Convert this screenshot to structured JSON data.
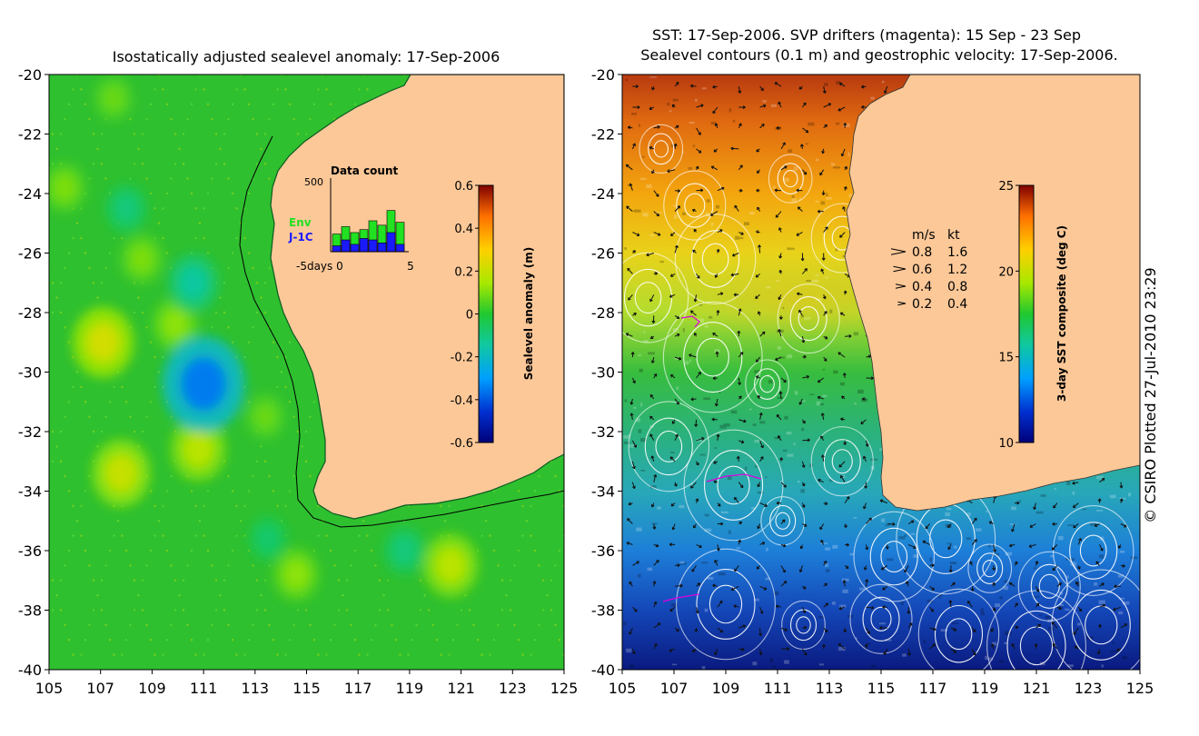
{
  "copyright": "© CSIRO Plotted 27-Jul-2010 23:29",
  "chart_data": [
    {
      "type": "heatmap",
      "title": "Isostatically adjusted sealevel anomaly: 17-Sep-2006",
      "xlim": [
        105,
        125
      ],
      "ylim": [
        -40,
        -20
      ],
      "xticks": [
        "105",
        "107",
        "109",
        "111",
        "113",
        "115",
        "117",
        "119",
        "121",
        "123",
        "125"
      ],
      "yticks": [
        "-20",
        "-22",
        "-24",
        "-26",
        "-28",
        "-30",
        "-32",
        "-34",
        "-36",
        "-38",
        "-40"
      ],
      "colorbar": {
        "label": "Sealevel anomaly (m)",
        "range": [
          -0.6,
          0.6
        ],
        "ticks": [
          "0.6",
          "0.4",
          "0.2",
          "0",
          "-0.2",
          "-0.4",
          "-0.6"
        ]
      },
      "anomaly_features": [
        {
          "lon": 107.1,
          "lat": -29.0,
          "value": 0.22
        },
        {
          "lon": 107.8,
          "lat": -33.4,
          "value": 0.2
        },
        {
          "lon": 110.8,
          "lat": -32.6,
          "value": 0.18
        },
        {
          "lon": 120.6,
          "lat": -36.5,
          "value": 0.18
        },
        {
          "lon": 109.9,
          "lat": -28.4,
          "value": 0.12
        },
        {
          "lon": 114.6,
          "lat": -36.8,
          "value": 0.12
        },
        {
          "lon": 105.6,
          "lat": -23.8,
          "value": 0.1
        },
        {
          "lon": 108.6,
          "lat": -26.2,
          "value": 0.1
        },
        {
          "lon": 113.4,
          "lat": -31.5,
          "value": 0.08
        },
        {
          "lon": 107.5,
          "lat": -20.8,
          "value": 0.08
        },
        {
          "lon": 111.0,
          "lat": -30.4,
          "value": -0.35
        },
        {
          "lon": 110.6,
          "lat": -27.0,
          "value": -0.15
        },
        {
          "lon": 108.0,
          "lat": -24.5,
          "value": -0.1
        },
        {
          "lon": 118.8,
          "lat": -36.0,
          "value": -0.1
        },
        {
          "lon": 113.5,
          "lat": -35.6,
          "value": -0.08
        }
      ],
      "inset": {
        "title": "Data count",
        "ymax_label": "500",
        "xlabel": "-5days 0",
        "xend_label": "5",
        "series": [
          {
            "name": "Env",
            "color": "#22e022",
            "values": [
              120,
              170,
              130,
              150,
              210,
              180,
              280,
              200
            ]
          },
          {
            "name": "J-1C",
            "color": "#1a1aff",
            "values": [
              40,
              80,
              50,
              90,
              80,
              60,
              130,
              50
            ]
          }
        ]
      }
    },
    {
      "type": "heatmap",
      "title": "SST: 17-Sep-2006. SVP drifters (magenta): 15 Sep - 23 Sep",
      "subtitle": "Sealevel contours (0.1 m) and geostrophic velocity: 17-Sep-2006.",
      "xlim": [
        105,
        125
      ],
      "ylim": [
        -40,
        -20
      ],
      "xticks": [
        "105",
        "107",
        "109",
        "111",
        "113",
        "115",
        "117",
        "119",
        "121",
        "123",
        "125"
      ],
      "yticks": [
        "-20",
        "-22",
        "-24",
        "-26",
        "-28",
        "-30",
        "-32",
        "-34",
        "-36",
        "-38",
        "-40"
      ],
      "colorbar": {
        "label": "3-day SST composite (deg C)",
        "range": [
          10,
          25
        ],
        "ticks": [
          "25",
          "20",
          "15",
          "10"
        ]
      },
      "sst_by_latitude": [
        {
          "lat": -20,
          "sst": 24.5
        },
        {
          "lat": -23,
          "sst": 23
        },
        {
          "lat": -25,
          "sst": 21.5
        },
        {
          "lat": -27,
          "sst": 20
        },
        {
          "lat": -29,
          "sst": 18.5
        },
        {
          "lat": -31,
          "sst": 17
        },
        {
          "lat": -33,
          "sst": 16
        },
        {
          "lat": -35,
          "sst": 15
        },
        {
          "lat": -37,
          "sst": 13.5
        },
        {
          "lat": -39,
          "sst": 12
        },
        {
          "lat": -40,
          "sst": 11
        }
      ],
      "velocity_legend": {
        "header": [
          "m/s",
          "kt"
        ],
        "rows": [
          {
            "ms": "0.8",
            "kt": "1.6"
          },
          {
            "ms": "0.6",
            "kt": "1.2"
          },
          {
            "ms": "0.4",
            "kt": "0.8"
          },
          {
            "ms": "0.2",
            "kt": "0.4"
          }
        ]
      }
    }
  ]
}
